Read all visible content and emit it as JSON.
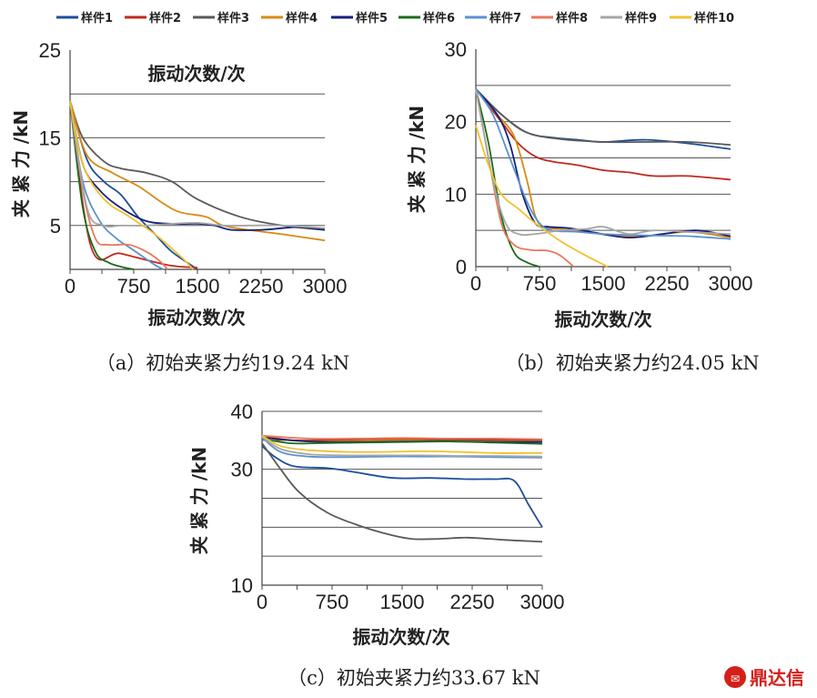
{
  "legend": [
    "样件1",
    "样件2",
    "样件3",
    "样件4",
    "样件5",
    "样件6",
    "样件7",
    "样件8",
    "样件9",
    "样件10"
  ],
  "colors": [
    "#1f4e9c",
    "#c0291d",
    "#5a5a5a",
    "#d98a12",
    "#15207a",
    "#1d6b1d",
    "#5b92d2",
    "#e8795a",
    "#a6a6a6",
    "#f2c12e"
  ],
  "watermark": "鼎达信",
  "chart_data": [
    {
      "type": "line",
      "caption": "（a）初始夹紧力约19.24 kN",
      "title": "振动次数/次",
      "xlabel": "振动次数/次",
      "ylabel": "夹 紧 力 /kN",
      "xlim": [
        0,
        3000
      ],
      "ylim": [
        0,
        25
      ],
      "xticks": [
        0,
        750,
        1500,
        2250,
        3000
      ],
      "xtick_labels": [
        "0",
        "750",
        "1500",
        "2250",
        "3000"
      ],
      "yticks": [
        5,
        15,
        25
      ],
      "ytick_labels": [
        "5",
        "15",
        "25"
      ],
      "gridlines": [
        5,
        10,
        15,
        20,
        25
      ],
      "series": [
        {
          "name": "样件1",
          "x": [
            0,
            200,
            400,
            600,
            800,
            1000,
            1200,
            1500
          ],
          "y": [
            19.2,
            12.5,
            10,
            8.5,
            6,
            4,
            2,
            0
          ]
        },
        {
          "name": "样件2",
          "x": [
            0,
            250,
            600,
            1150,
            1500
          ],
          "y": [
            19.2,
            2.5,
            1.8,
            0.5,
            0.2
          ]
        },
        {
          "name": "样件3",
          "x": [
            0,
            150,
            400,
            600,
            900,
            1200,
            1500,
            2000,
            2500,
            3000
          ],
          "y": [
            19.2,
            15,
            12.3,
            11.5,
            11,
            10,
            8,
            6,
            5,
            4.5
          ]
        },
        {
          "name": "样件4",
          "x": [
            0,
            200,
            500,
            800,
            1100,
            1300,
            1600,
            1800,
            2100,
            2500,
            3000
          ],
          "y": [
            19.2,
            13,
            11,
            9.5,
            7.5,
            6.5,
            6,
            5,
            4.5,
            4,
            3.3
          ]
        },
        {
          "name": "样件5",
          "x": [
            0,
            150,
            350,
            600,
            900,
            1200,
            1500,
            1700,
            1900,
            2250,
            2500,
            2700,
            3000
          ],
          "y": [
            19.2,
            12,
            9,
            7,
            5.5,
            5.2,
            5.2,
            5,
            4.5,
            4.5,
            4.7,
            4.8,
            4.5
          ]
        },
        {
          "name": "样件6",
          "x": [
            0,
            150,
            300,
            450,
            600,
            750
          ],
          "y": [
            19.2,
            7,
            2,
            0.8,
            0.3,
            0
          ]
        },
        {
          "name": "样件7",
          "x": [
            0,
            150,
            350,
            550,
            700,
            850,
            1000,
            1100
          ],
          "y": [
            19.2,
            10,
            5.5,
            3.5,
            2.5,
            1.5,
            0.5,
            0
          ]
        },
        {
          "name": "样件8",
          "x": [
            0,
            150,
            300,
            450,
            700,
            900,
            1050,
            1150
          ],
          "y": [
            19.2,
            9,
            3.5,
            2.8,
            2.8,
            2,
            1,
            0
          ]
        },
        {
          "name": "样件9",
          "x": [
            0,
            200,
            400,
            600,
            900,
            1200,
            1500,
            1800,
            2100,
            2500,
            3000
          ],
          "y": [
            19.2,
            7,
            5,
            5,
            5,
            5.2,
            5.3,
            5,
            5,
            5,
            4.7
          ]
        },
        {
          "name": "样件10",
          "x": [
            0,
            150,
            400,
            700,
            1000,
            1300,
            1450
          ],
          "y": [
            19.2,
            12,
            8,
            6,
            4,
            1.5,
            0
          ]
        }
      ]
    },
    {
      "type": "line",
      "caption": "（b）初始夹紧力约24.05 kN",
      "xlabel": "振动次数/次",
      "ylabel": "夹 紧 力 /kN",
      "xlim": [
        0,
        3000
      ],
      "ylim": [
        0,
        30
      ],
      "xticks": [
        0,
        750,
        1500,
        2250,
        3000
      ],
      "xtick_labels": [
        "0",
        "750",
        "1500",
        "2250",
        "3000"
      ],
      "yticks": [
        0,
        10,
        20,
        30
      ],
      "ytick_labels": [
        "0",
        "10",
        "20",
        "30"
      ],
      "gridlines": [
        0,
        5,
        10,
        15,
        20,
        25
      ],
      "series": [
        {
          "name": "样件1",
          "x": [
            0,
            300,
            600,
            900,
            1200,
            1500,
            2000,
            2500,
            3000
          ],
          "y": [
            24.5,
            21,
            18.5,
            17.8,
            17.5,
            17.2,
            17.5,
            17,
            16.2
          ]
        },
        {
          "name": "样件2",
          "x": [
            0,
            300,
            500,
            700,
            900,
            1200,
            1500,
            1800,
            2100,
            2500,
            3000
          ],
          "y": [
            24.5,
            20,
            17,
            15.2,
            14.5,
            14,
            13.3,
            13,
            12.5,
            12.5,
            12
          ]
        },
        {
          "name": "样件3",
          "x": [
            0,
            300,
            600,
            1000,
            1500,
            2000,
            2500,
            3000
          ],
          "y": [
            24.5,
            21,
            18.5,
            17.6,
            17.2,
            17.2,
            17.2,
            16.8
          ]
        },
        {
          "name": "样件4",
          "x": [
            0,
            250,
            450,
            600,
            700,
            800,
            1000,
            1300,
            1600,
            2000,
            2500,
            3000
          ],
          "y": [
            24.5,
            21,
            18,
            12,
            7,
            5.5,
            5.2,
            4.8,
            4.3,
            4.2,
            4.8,
            4
          ]
        },
        {
          "name": "样件5",
          "x": [
            0,
            250,
            400,
            550,
            700,
            850,
            1100,
            1400,
            1800,
            2200,
            2600,
            3000
          ],
          "y": [
            24.5,
            21,
            17,
            10,
            6,
            5.5,
            5.3,
            4.7,
            4,
            4.5,
            5,
            4.2
          ]
        },
        {
          "name": "样件6",
          "x": [
            0,
            150,
            300,
            450,
            600,
            750
          ],
          "y": [
            24.5,
            17,
            7,
            2,
            0.6,
            0
          ]
        },
        {
          "name": "样件7",
          "x": [
            0,
            200,
            400,
            600,
            750,
            900,
            1200,
            1500,
            2000,
            2500,
            3000
          ],
          "y": [
            24.5,
            21,
            15,
            9,
            6,
            5,
            4.8,
            4.5,
            4.3,
            4.2,
            3.8
          ]
        },
        {
          "name": "样件8",
          "x": [
            0,
            150,
            300,
            450,
            650,
            850,
            1000,
            1150
          ],
          "y": [
            24.5,
            15,
            6,
            3,
            2.3,
            2.2,
            1.5,
            0
          ]
        },
        {
          "name": "样件9",
          "x": [
            0,
            200,
            350,
            500,
            700,
            1000,
            1300,
            1500,
            1800,
            2100,
            2500,
            3000
          ],
          "y": [
            24.5,
            12,
            6,
            4.5,
            4.5,
            5,
            5.2,
            5.5,
            4.5,
            5,
            4.8,
            4.5
          ]
        },
        {
          "name": "样件10",
          "x": [
            0,
            150,
            300,
            500,
            700,
            1000,
            1300,
            1550
          ],
          "y": [
            19.5,
            14,
            10,
            8,
            6,
            3.5,
            1.5,
            0
          ]
        }
      ]
    },
    {
      "type": "line",
      "caption": "（c）初始夹紧力约33.67 kN",
      "xlabel": "振动次数/次",
      "ylabel": "夹 紧 力 /kN",
      "xlim": [
        0,
        3000
      ],
      "ylim": [
        10,
        40
      ],
      "xticks": [
        0,
        750,
        1500,
        2250,
        3000
      ],
      "xtick_labels": [
        "0",
        "750",
        "1500",
        "2250",
        "3000"
      ],
      "yticks": [
        10,
        30,
        40
      ],
      "ytick_labels": [
        "10",
        "30",
        "40"
      ],
      "gridlines": [
        10,
        15,
        20,
        25,
        30,
        35,
        40
      ],
      "series": [
        {
          "name": "样件1",
          "x": [
            0,
            150,
            350,
            700,
            1000,
            1400,
            1800,
            2200,
            2500,
            2700,
            2850,
            3000
          ],
          "y": [
            34,
            32,
            30.5,
            30.2,
            29.5,
            28.5,
            28.5,
            28.3,
            28.3,
            28,
            24,
            20
          ]
        },
        {
          "name": "样件2",
          "x": [
            0,
            300,
            600,
            1000,
            1500,
            2000,
            2500,
            3000
          ],
          "y": [
            35.5,
            35,
            35,
            35.2,
            35.2,
            35.2,
            35.1,
            35
          ]
        },
        {
          "name": "样件3",
          "x": [
            0,
            200,
            400,
            700,
            1000,
            1300,
            1600,
            1900,
            2200,
            2600,
            3000
          ],
          "y": [
            34.5,
            30,
            26,
            22.5,
            20.5,
            19,
            18,
            18,
            18.2,
            17.8,
            17.5
          ]
        },
        {
          "name": "样件4",
          "x": [
            0,
            300,
            600,
            1000,
            1500,
            2000,
            2500,
            3000
          ],
          "y": [
            35.8,
            35,
            34.8,
            34.9,
            35,
            34.8,
            34.8,
            34.8
          ]
        },
        {
          "name": "样件5",
          "x": [
            0,
            500,
            1000,
            1500,
            2000,
            2500,
            3000
          ],
          "y": [
            35.5,
            34.8,
            34.7,
            34.8,
            34.8,
            34.7,
            34.7
          ]
        },
        {
          "name": "样件6",
          "x": [
            0,
            300,
            600,
            1000,
            1500,
            2000,
            2500,
            3000
          ],
          "y": [
            35.3,
            34.5,
            34.5,
            34.6,
            34.7,
            34.8,
            34.6,
            34.4
          ]
        },
        {
          "name": "样件7",
          "x": [
            0,
            200,
            500,
            900,
            1300,
            1700,
            2100,
            2500,
            3000
          ],
          "y": [
            35.5,
            33,
            32.2,
            32.1,
            32.2,
            32.2,
            32.2,
            32.1,
            32
          ]
        },
        {
          "name": "样件8",
          "x": [
            0,
            500,
            1000,
            1500,
            2000,
            2500,
            3000
          ],
          "y": [
            35.8,
            35.3,
            35.3,
            35.4,
            35.3,
            35.3,
            35.2
          ]
        },
        {
          "name": "样件9",
          "x": [
            0,
            200,
            500,
            900,
            1300,
            1700,
            2100,
            2500,
            3000
          ],
          "y": [
            35.6,
            33.5,
            32.6,
            32.4,
            32.4,
            32.4,
            32.3,
            32.3,
            32.2
          ]
        },
        {
          "name": "样件10",
          "x": [
            0,
            200,
            500,
            900,
            1300,
            1700,
            2100,
            2500,
            3000
          ],
          "y": [
            35.8,
            34,
            33.3,
            33,
            33,
            33.1,
            33,
            32.8,
            32.8
          ]
        }
      ]
    }
  ]
}
